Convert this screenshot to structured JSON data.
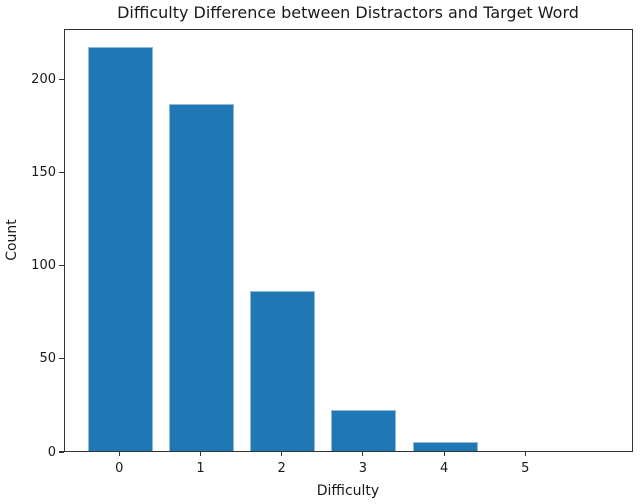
{
  "chart_data": {
    "type": "bar",
    "title": "Difficulty Difference between Distractors and Target Word",
    "xlabel": "Difficulty",
    "ylabel": "Count",
    "categories": [
      "0",
      "1",
      "2",
      "3",
      "4",
      "5"
    ],
    "values": [
      217,
      186,
      86,
      22,
      5,
      0
    ],
    "yticks": [
      0,
      50,
      100,
      150,
      200
    ],
    "ylim": [
      0,
      227
    ],
    "grid": false,
    "legend": "none",
    "bar_color": "#1f77b4",
    "bar_edge_color": "#8fbbd9",
    "axis_color": "#333333",
    "background_color": "#ffffff"
  }
}
